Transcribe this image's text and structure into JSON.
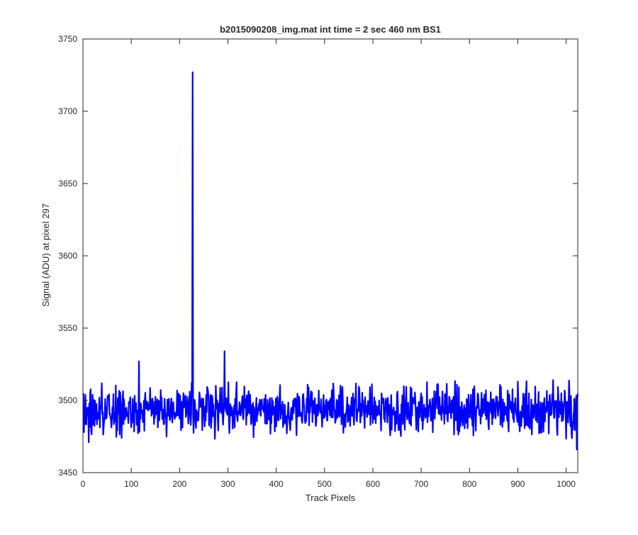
{
  "chart_data": {
    "type": "line",
    "title": "b2015090208_img.mat int time = 2 sec  460 nm BS1",
    "xlabel": "Track Pixels",
    "ylabel": "Signal (ADU) at pixel 297",
    "xlim": [
      0,
      1024
    ],
    "ylim": [
      3450,
      3750
    ],
    "xticks": [
      0,
      100,
      200,
      300,
      400,
      500,
      600,
      700,
      800,
      900,
      1000
    ],
    "yticks": [
      3450,
      3500,
      3550,
      3600,
      3650,
      3700,
      3750
    ],
    "grid": false,
    "legend": "none",
    "series": [
      {
        "color": "#0000ff",
        "noise": {
          "x_start": 1,
          "x_end": 1024,
          "baseline": 3495,
          "low": 3471,
          "high": 3516,
          "step": 1,
          "seed": 208
        },
        "features": [
          {
            "x": 1,
            "y": 3505
          },
          {
            "x": 12,
            "y": 3471
          },
          {
            "x": 116,
            "y": 3527
          },
          {
            "x": 227,
            "y": 3727
          },
          {
            "x": 228,
            "y": 3490
          },
          {
            "x": 293,
            "y": 3534
          },
          {
            "x": 1022,
            "y": 3466
          }
        ]
      }
    ]
  },
  "colors": {
    "line": "#0000ff",
    "axes": "#262626",
    "background": "#ffffff"
  }
}
